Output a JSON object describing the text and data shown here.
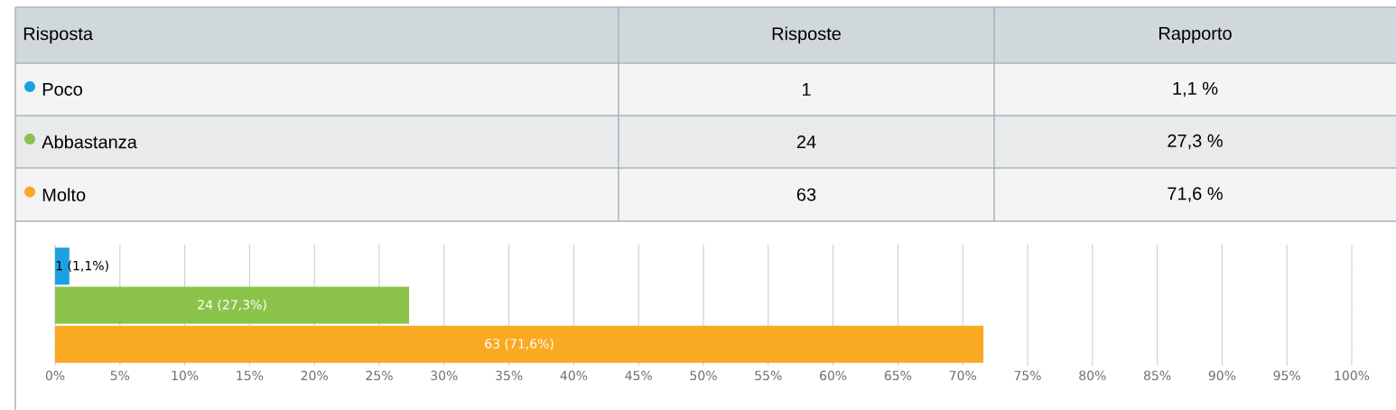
{
  "chart_data": [
    {
      "type": "other",
      "annotations": [
        "Risposta",
        "Risposte",
        "Rapporto",
        "Poco",
        "1",
        "1,1 %",
        "Abbastanza",
        "24",
        "27,3 %",
        "Molto",
        "63",
        "71,6 %"
      ]
    },
    {
      "type": "bar",
      "orientation": "horizontal",
      "categories": [
        null,
        null,
        null
      ],
      "values": [
        1.1,
        27.3,
        71.6
      ],
      "colors": [
        "#1ba1e2",
        "#8bc34a",
        "#faa923"
      ],
      "value_labels": [
        "1 (1,1%)",
        "24 (27,3%)",
        "63 (71,6%)"
      ],
      "xlim": [
        0,
        100
      ],
      "xticks": [
        {
          "value": 0,
          "label": "0%"
        },
        {
          "value": 5,
          "label": "5%"
        },
        {
          "value": 10,
          "label": "10%"
        },
        {
          "value": 15,
          "label": "15%"
        },
        {
          "value": 20,
          "label": "20%"
        },
        {
          "value": 25,
          "label": "25%"
        },
        {
          "value": 30,
          "label": "30%"
        },
        {
          "value": 35,
          "label": "35%"
        },
        {
          "value": 40,
          "label": "40%"
        },
        {
          "value": 45,
          "label": "45%"
        },
        {
          "value": 50,
          "label": "50%"
        },
        {
          "value": 55,
          "label": "55%"
        },
        {
          "value": 60,
          "label": "60%"
        },
        {
          "value": 65,
          "label": "65%"
        },
        {
          "value": 70,
          "label": "70%"
        },
        {
          "value": 75,
          "label": "75%"
        },
        {
          "value": 80,
          "label": "80%"
        },
        {
          "value": 85,
          "label": "85%"
        },
        {
          "value": 90,
          "label": "90%"
        },
        {
          "value": 95,
          "label": "95%"
        },
        {
          "value": 100,
          "label": "100%"
        }
      ],
      "grid": "x",
      "tick_labels": "x"
    }
  ]
}
